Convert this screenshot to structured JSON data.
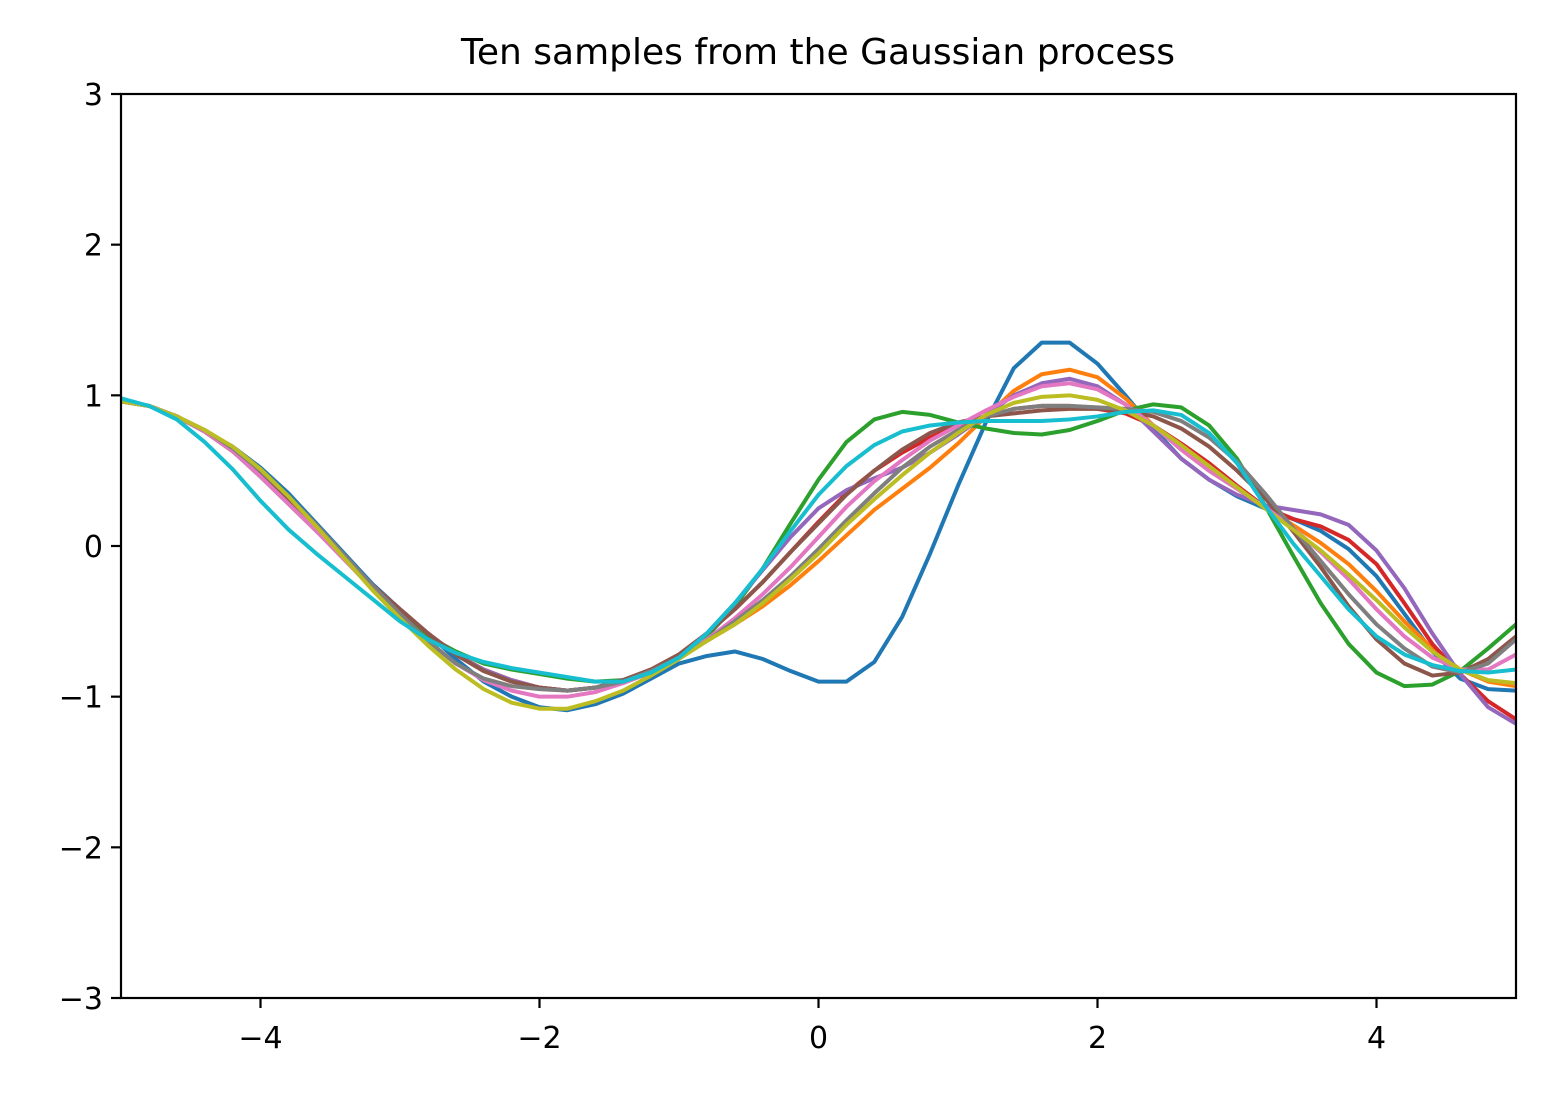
{
  "chart_data": {
    "type": "line",
    "title": "Ten samples from the Gaussian process",
    "xlabel": "",
    "ylabel": "",
    "xlim": [
      -5,
      5
    ],
    "ylim": [
      -3,
      3
    ],
    "xticks": [
      -4,
      -2,
      0,
      2,
      4
    ],
    "xtick_labels": [
      "−4",
      "−2",
      "0",
      "2",
      "4"
    ],
    "yticks": [
      -3,
      -2,
      -1,
      0,
      1,
      2,
      3
    ],
    "ytick_labels": [
      "−3",
      "−2",
      "−1",
      "0",
      "1",
      "2",
      "3"
    ],
    "grid": false,
    "x": [
      -5.0,
      -4.8,
      -4.6,
      -4.4,
      -4.2,
      -4.0,
      -3.8,
      -3.6,
      -3.4,
      -3.2,
      -3.0,
      -2.8,
      -2.6,
      -2.4,
      -2.2,
      -2.0,
      -1.8,
      -1.6,
      -1.4,
      -1.2,
      -1.0,
      -0.8,
      -0.6,
      -0.4,
      -0.2,
      0.0,
      0.2,
      0.4,
      0.6,
      0.8,
      1.0,
      1.2,
      1.4,
      1.6,
      1.8,
      2.0,
      2.2,
      2.4,
      2.6,
      2.8,
      3.0,
      3.2,
      3.4,
      3.6,
      3.8,
      4.0,
      4.2,
      4.4,
      4.6,
      4.8,
      5.0
    ],
    "series": [
      {
        "color": "#1f77b4",
        "values": [
          0.96,
          0.93,
          0.86,
          0.76,
          0.66,
          0.52,
          0.35,
          0.15,
          -0.05,
          -0.25,
          -0.42,
          -0.58,
          -0.75,
          -0.9,
          -1.0,
          -1.07,
          -1.09,
          -1.05,
          -0.98,
          -0.88,
          -0.78,
          -0.73,
          -0.7,
          -0.75,
          -0.83,
          -0.9,
          -0.9,
          -0.77,
          -0.47,
          -0.05,
          0.4,
          0.82,
          1.18,
          1.35,
          1.35,
          1.21,
          1.0,
          0.78,
          0.58,
          0.44,
          0.33,
          0.25,
          0.18,
          0.1,
          -0.02,
          -0.2,
          -0.45,
          -0.7,
          -0.88,
          -0.95,
          -0.96
        ]
      },
      {
        "color": "#ff7f0e",
        "values": [
          0.96,
          0.93,
          0.86,
          0.76,
          0.63,
          0.47,
          0.3,
          0.12,
          -0.07,
          -0.26,
          -0.42,
          -0.58,
          -0.72,
          -0.82,
          -0.89,
          -0.94,
          -0.96,
          -0.94,
          -0.89,
          -0.82,
          -0.73,
          -0.63,
          -0.52,
          -0.4,
          -0.26,
          -0.1,
          0.07,
          0.24,
          0.38,
          0.52,
          0.68,
          0.86,
          1.03,
          1.14,
          1.17,
          1.12,
          0.98,
          0.8,
          0.64,
          0.5,
          0.38,
          0.26,
          0.14,
          0.02,
          -0.12,
          -0.3,
          -0.5,
          -0.68,
          -0.82,
          -0.9,
          -0.93
        ]
      },
      {
        "color": "#2ca02c",
        "values": [
          0.96,
          0.93,
          0.86,
          0.76,
          0.63,
          0.46,
          0.28,
          0.1,
          -0.08,
          -0.27,
          -0.45,
          -0.6,
          -0.7,
          -0.78,
          -0.82,
          -0.85,
          -0.88,
          -0.9,
          -0.89,
          -0.85,
          -0.75,
          -0.6,
          -0.4,
          -0.15,
          0.15,
          0.44,
          0.69,
          0.84,
          0.89,
          0.87,
          0.82,
          0.78,
          0.75,
          0.74,
          0.77,
          0.83,
          0.9,
          0.94,
          0.92,
          0.8,
          0.58,
          0.27,
          -0.06,
          -0.38,
          -0.65,
          -0.84,
          -0.93,
          -0.92,
          -0.83,
          -0.68,
          -0.52
        ]
      },
      {
        "color": "#d62728",
        "values": [
          0.96,
          0.93,
          0.86,
          0.76,
          0.63,
          0.47,
          0.3,
          0.12,
          -0.07,
          -0.26,
          -0.42,
          -0.58,
          -0.72,
          -0.83,
          -0.9,
          -0.94,
          -0.96,
          -0.94,
          -0.89,
          -0.82,
          -0.72,
          -0.58,
          -0.42,
          -0.24,
          -0.04,
          0.16,
          0.35,
          0.5,
          0.62,
          0.72,
          0.8,
          0.86,
          0.91,
          0.93,
          0.93,
          0.91,
          0.88,
          0.8,
          0.68,
          0.55,
          0.4,
          0.26,
          0.18,
          0.13,
          0.04,
          -0.12,
          -0.38,
          -0.65,
          -0.85,
          -1.03,
          -1.15
        ]
      },
      {
        "color": "#9467bd",
        "values": [
          0.96,
          0.93,
          0.86,
          0.76,
          0.63,
          0.47,
          0.3,
          0.12,
          -0.07,
          -0.26,
          -0.42,
          -0.58,
          -0.72,
          -0.82,
          -0.89,
          -0.94,
          -0.96,
          -0.94,
          -0.89,
          -0.82,
          -0.73,
          -0.58,
          -0.38,
          -0.16,
          0.06,
          0.25,
          0.37,
          0.45,
          0.52,
          0.62,
          0.74,
          0.87,
          1.0,
          1.08,
          1.11,
          1.06,
          0.94,
          0.76,
          0.58,
          0.44,
          0.34,
          0.27,
          0.24,
          0.21,
          0.14,
          -0.03,
          -0.28,
          -0.58,
          -0.85,
          -1.07,
          -1.18
        ]
      },
      {
        "color": "#8c564b",
        "values": [
          0.96,
          0.93,
          0.86,
          0.76,
          0.63,
          0.47,
          0.3,
          0.12,
          -0.07,
          -0.26,
          -0.42,
          -0.58,
          -0.72,
          -0.83,
          -0.9,
          -0.94,
          -0.96,
          -0.94,
          -0.89,
          -0.82,
          -0.72,
          -0.58,
          -0.42,
          -0.24,
          -0.04,
          0.15,
          0.34,
          0.5,
          0.64,
          0.75,
          0.82,
          0.86,
          0.88,
          0.9,
          0.91,
          0.91,
          0.9,
          0.86,
          0.78,
          0.66,
          0.5,
          0.32,
          0.1,
          -0.14,
          -0.4,
          -0.62,
          -0.78,
          -0.86,
          -0.84,
          -0.75,
          -0.6
        ]
      },
      {
        "color": "#e377c2",
        "values": [
          0.96,
          0.93,
          0.86,
          0.76,
          0.63,
          0.46,
          0.28,
          0.1,
          -0.09,
          -0.28,
          -0.46,
          -0.63,
          -0.78,
          -0.89,
          -0.96,
          -1.0,
          -1.0,
          -0.97,
          -0.91,
          -0.84,
          -0.74,
          -0.62,
          -0.48,
          -0.32,
          -0.14,
          0.06,
          0.26,
          0.43,
          0.57,
          0.7,
          0.8,
          0.9,
          0.99,
          1.06,
          1.08,
          1.04,
          0.94,
          0.8,
          0.64,
          0.5,
          0.38,
          0.26,
          0.12,
          -0.04,
          -0.22,
          -0.42,
          -0.6,
          -0.74,
          -0.82,
          -0.82,
          -0.72
        ]
      },
      {
        "color": "#7f7f7f",
        "values": [
          0.96,
          0.93,
          0.86,
          0.77,
          0.65,
          0.5,
          0.33,
          0.14,
          -0.06,
          -0.26,
          -0.45,
          -0.63,
          -0.78,
          -0.88,
          -0.93,
          -0.95,
          -0.96,
          -0.94,
          -0.9,
          -0.83,
          -0.74,
          -0.63,
          -0.5,
          -0.36,
          -0.2,
          -0.02,
          0.17,
          0.35,
          0.52,
          0.66,
          0.77,
          0.86,
          0.91,
          0.93,
          0.93,
          0.92,
          0.91,
          0.89,
          0.83,
          0.72,
          0.56,
          0.35,
          0.12,
          -0.1,
          -0.32,
          -0.52,
          -0.68,
          -0.8,
          -0.84,
          -0.78,
          -0.62
        ]
      },
      {
        "color": "#bcbd22",
        "values": [
          0.96,
          0.93,
          0.86,
          0.77,
          0.66,
          0.51,
          0.33,
          0.13,
          -0.08,
          -0.29,
          -0.48,
          -0.66,
          -0.82,
          -0.95,
          -1.04,
          -1.08,
          -1.08,
          -1.03,
          -0.96,
          -0.86,
          -0.75,
          -0.63,
          -0.52,
          -0.38,
          -0.22,
          -0.05,
          0.14,
          0.31,
          0.47,
          0.62,
          0.75,
          0.87,
          0.95,
          0.99,
          1.0,
          0.97,
          0.9,
          0.8,
          0.67,
          0.53,
          0.39,
          0.25,
          0.11,
          -0.03,
          -0.19,
          -0.36,
          -0.54,
          -0.7,
          -0.82,
          -0.89,
          -0.91
        ]
      },
      {
        "color": "#17becf",
        "values": [
          0.98,
          0.93,
          0.84,
          0.69,
          0.51,
          0.3,
          0.11,
          -0.05,
          -0.2,
          -0.35,
          -0.5,
          -0.62,
          -0.71,
          -0.77,
          -0.81,
          -0.84,
          -0.87,
          -0.9,
          -0.9,
          -0.84,
          -0.74,
          -0.58,
          -0.38,
          -0.15,
          0.1,
          0.34,
          0.53,
          0.67,
          0.76,
          0.8,
          0.82,
          0.83,
          0.83,
          0.83,
          0.84,
          0.86,
          0.89,
          0.9,
          0.87,
          0.75,
          0.55,
          0.27,
          0.02,
          -0.2,
          -0.42,
          -0.6,
          -0.72,
          -0.79,
          -0.83,
          -0.84,
          -0.82
        ]
      }
    ]
  }
}
